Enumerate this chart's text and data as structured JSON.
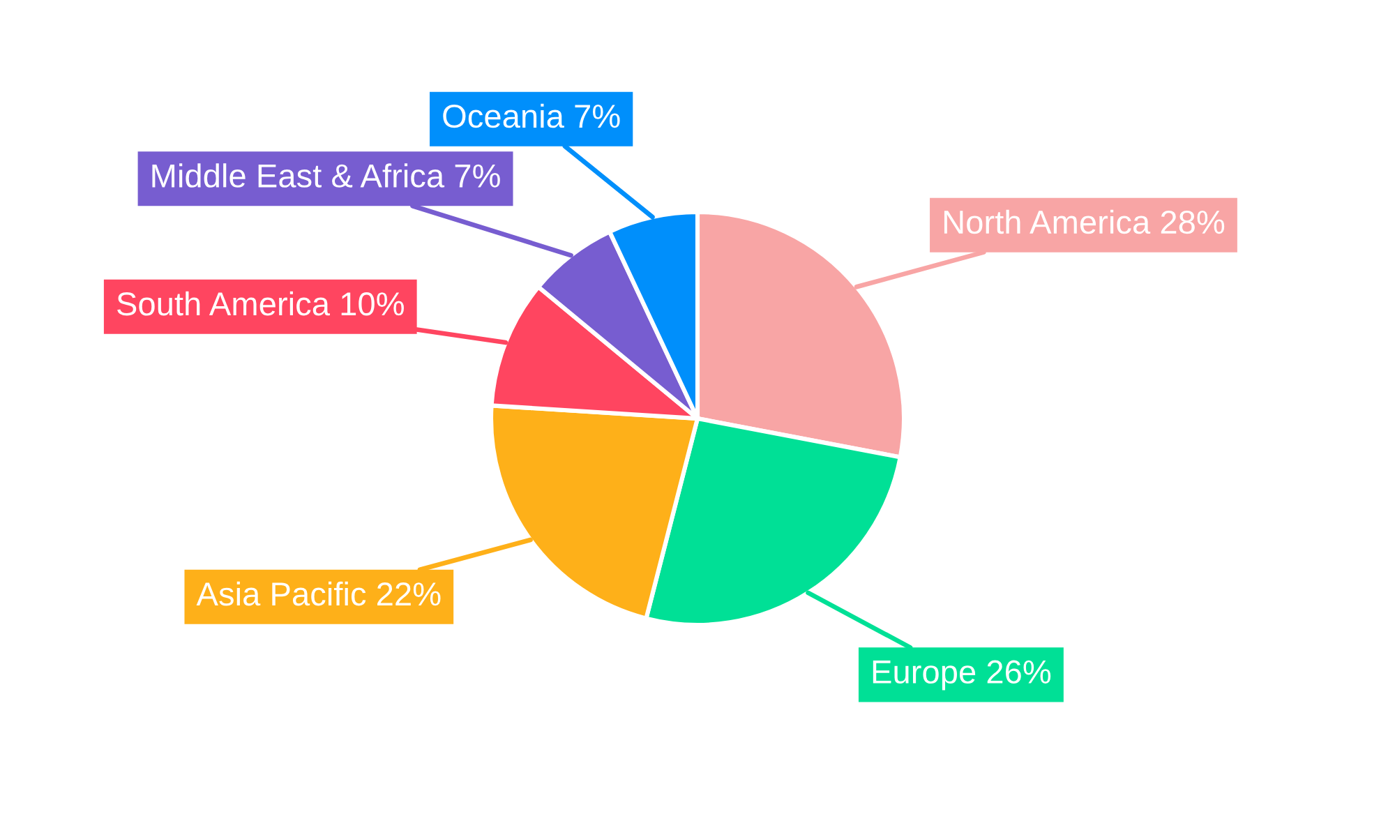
{
  "chart_data": {
    "type": "pie",
    "categories": [
      "North America",
      "Europe",
      "Asia Pacific",
      "South America",
      "Middle East & Africa",
      "Oceania"
    ],
    "values": [
      28,
      26,
      22,
      10,
      7,
      7
    ],
    "value_labels": [
      "28%",
      "26%",
      "22%",
      "10%",
      "7%",
      "7%"
    ],
    "colors": [
      "#f8a5a5",
      "#00e096",
      "#feb019",
      "#ff4560",
      "#775dd0",
      "#008ffb"
    ]
  }
}
